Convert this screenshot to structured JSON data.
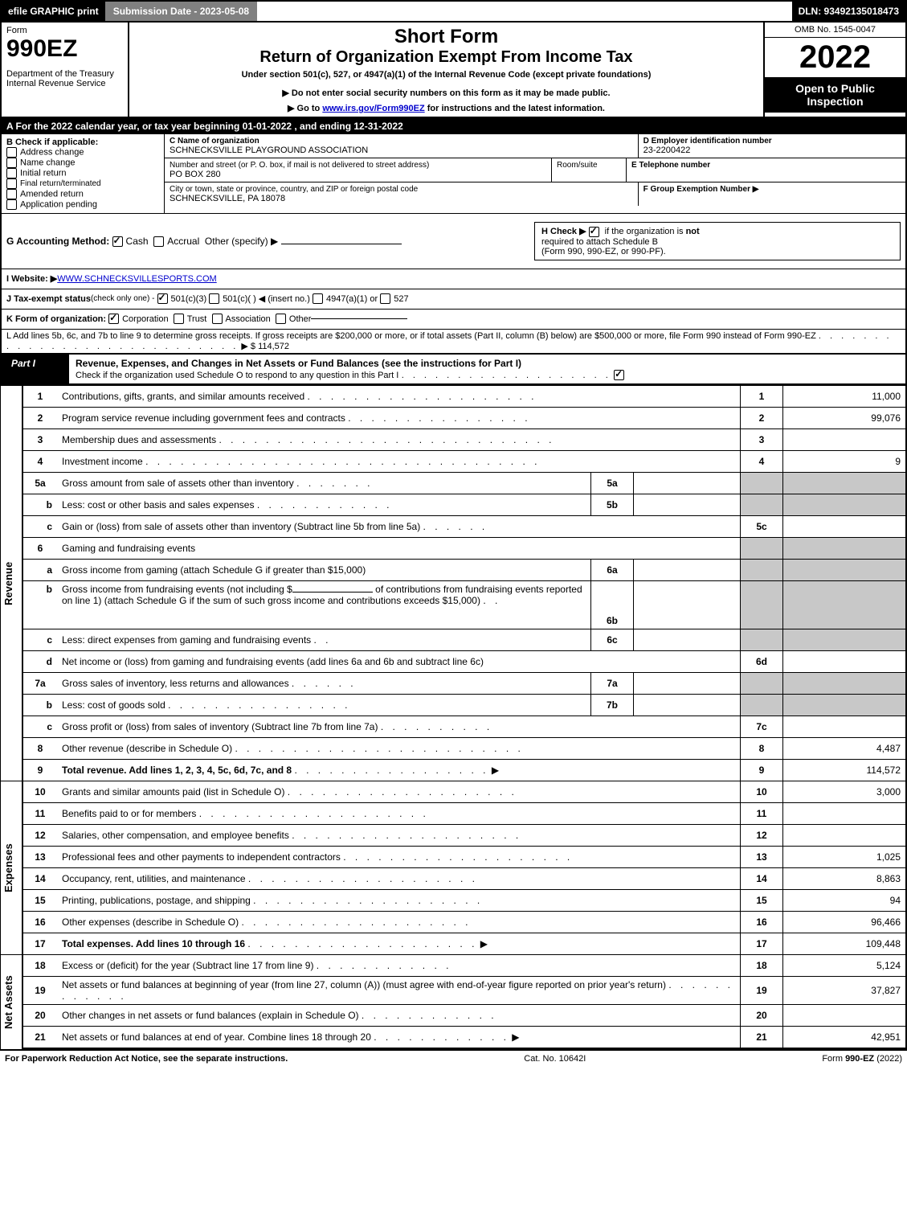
{
  "top_bar": {
    "efile": "efile GRAPHIC print",
    "submission": "Submission Date - 2023-05-08",
    "dln": "DLN: 93492135018473"
  },
  "header": {
    "form_word": "Form",
    "form_no": "990EZ",
    "dept": "Department of the Treasury",
    "irs": "Internal Revenue Service",
    "short_form": "Short Form",
    "title": "Return of Organization Exempt From Income Tax",
    "subtitle": "Under section 501(c), 527, or 4947(a)(1) of the Internal Revenue Code (except private foundations)",
    "note1": "▶ Do not enter social security numbers on this form as it may be made public.",
    "note2": "▶ Go to www.irs.gov/Form990EZ for instructions and the latest information.",
    "note2_link": "www.irs.gov/Form990EZ",
    "omb": "OMB No. 1545-0047",
    "year": "2022",
    "open": "Open to Public Inspection"
  },
  "section_A": "A  For the 2022 calendar year, or tax year beginning 01-01-2022 , and ending 12-31-2022",
  "B": {
    "title": "B  Check if applicable:",
    "items": [
      "Address change",
      "Name change",
      "Initial return",
      "Final return/terminated",
      "Amended return",
      "Application pending"
    ]
  },
  "C": {
    "label": "C Name of organization",
    "name": "SCHNECKSVILLE PLAYGROUND ASSOCIATION",
    "street_label": "Number and street (or P. O. box, if mail is not delivered to street address)",
    "street": "PO BOX 280",
    "room_label": "Room/suite",
    "city_label": "City or town, state or province, country, and ZIP or foreign postal code",
    "city": "SCHNECKSVILLE, PA  18078"
  },
  "D": {
    "label": "D Employer identification number",
    "value": "23-2200422"
  },
  "E": {
    "label": "E Telephone number",
    "value": ""
  },
  "F": {
    "label": "F Group Exemption Number  ▶",
    "value": ""
  },
  "G": {
    "label": "G Accounting Method:",
    "cash": "Cash",
    "accrual": "Accrual",
    "other": "Other (specify) ▶"
  },
  "H": {
    "text1": "H  Check ▶",
    "text2": "if the organization is",
    "not": "not",
    "text3": "required to attach Schedule B",
    "text4": "(Form 990, 990-EZ, or 990-PF)."
  },
  "I": {
    "label": "I Website: ▶",
    "value": "WWW.SCHNECKSVILLESPORTS.COM"
  },
  "J": {
    "label": "J Tax-exempt status",
    "note": "(check only one) -",
    "opt1": "501(c)(3)",
    "opt2": "501(c)(  ) ◀ (insert no.)",
    "opt3": "4947(a)(1) or",
    "opt4": "527"
  },
  "K": {
    "label": "K Form of organization:",
    "opts": [
      "Corporation",
      "Trust",
      "Association",
      "Other"
    ]
  },
  "L": {
    "text": "L Add lines 5b, 6c, and 7b to line 9 to determine gross receipts. If gross receipts are $200,000 or more, or if total assets (Part II, column (B) below) are $500,000 or more, file Form 990 instead of Form 990-EZ",
    "arrow": "▶",
    "amount": "$ 114,572"
  },
  "part1": {
    "label": "Part I",
    "title": "Revenue, Expenses, and Changes in Net Assets or Fund Balances (see the instructions for Part I)",
    "sub": "Check if the organization used Schedule O to respond to any question in this Part I"
  },
  "vtabs": {
    "rev": "Revenue",
    "exp": "Expenses",
    "net": "Net Assets"
  },
  "revenue": [
    {
      "ln": "1",
      "desc": "Contributions, gifts, grants, and similar amounts received",
      "num": "1",
      "val": "11,000"
    },
    {
      "ln": "2",
      "desc": "Program service revenue including government fees and contracts",
      "num": "2",
      "val": "99,076"
    },
    {
      "ln": "3",
      "desc": "Membership dues and assessments",
      "num": "3",
      "val": ""
    },
    {
      "ln": "4",
      "desc": "Investment income",
      "num": "4",
      "val": "9"
    }
  ],
  "rev5a": {
    "ln": "5a",
    "desc": "Gross amount from sale of assets other than inventory",
    "innum": "5a"
  },
  "rev5b": {
    "ln": "b",
    "desc": "Less: cost or other basis and sales expenses",
    "innum": "5b"
  },
  "rev5c": {
    "ln": "c",
    "desc": "Gain or (loss) from sale of assets other than inventory (Subtract line 5b from line 5a)",
    "num": "5c",
    "val": ""
  },
  "rev6": {
    "ln": "6",
    "desc": "Gaming and fundraising events"
  },
  "rev6a": {
    "ln": "a",
    "desc": "Gross income from gaming (attach Schedule G if greater than $15,000)",
    "innum": "6a"
  },
  "rev6b": {
    "ln": "b",
    "desc1": "Gross income from fundraising events (not including $",
    "desc2": "of contributions from fundraising events reported on line 1) (attach Schedule G if the sum of such gross income and contributions exceeds $15,000)",
    "innum": "6b"
  },
  "rev6c": {
    "ln": "c",
    "desc": "Less: direct expenses from gaming and fundraising events",
    "innum": "6c"
  },
  "rev6d": {
    "ln": "d",
    "desc": "Net income or (loss) from gaming and fundraising events (add lines 6a and 6b and subtract line 6c)",
    "num": "6d",
    "val": ""
  },
  "rev7a": {
    "ln": "7a",
    "desc": "Gross sales of inventory, less returns and allowances",
    "innum": "7a"
  },
  "rev7b": {
    "ln": "b",
    "desc": "Less: cost of goods sold",
    "innum": "7b"
  },
  "rev7c": {
    "ln": "c",
    "desc": "Gross profit or (loss) from sales of inventory (Subtract line 7b from line 7a)",
    "num": "7c",
    "val": ""
  },
  "rev8": {
    "ln": "8",
    "desc": "Other revenue (describe in Schedule O)",
    "num": "8",
    "val": "4,487"
  },
  "rev9": {
    "ln": "9",
    "desc": "Total revenue. Add lines 1, 2, 3, 4, 5c, 6d, 7c, and 8",
    "arrow": "▶",
    "num": "9",
    "val": "114,572",
    "bold": true
  },
  "expenses": [
    {
      "ln": "10",
      "desc": "Grants and similar amounts paid (list in Schedule O)",
      "num": "10",
      "val": "3,000"
    },
    {
      "ln": "11",
      "desc": "Benefits paid to or for members",
      "num": "11",
      "val": ""
    },
    {
      "ln": "12",
      "desc": "Salaries, other compensation, and employee benefits",
      "num": "12",
      "val": ""
    },
    {
      "ln": "13",
      "desc": "Professional fees and other payments to independent contractors",
      "num": "13",
      "val": "1,025"
    },
    {
      "ln": "14",
      "desc": "Occupancy, rent, utilities, and maintenance",
      "num": "14",
      "val": "8,863"
    },
    {
      "ln": "15",
      "desc": "Printing, publications, postage, and shipping",
      "num": "15",
      "val": "94"
    },
    {
      "ln": "16",
      "desc": "Other expenses (describe in Schedule O)",
      "num": "16",
      "val": "96,466"
    },
    {
      "ln": "17",
      "desc": "Total expenses. Add lines 10 through 16",
      "arrow": "▶",
      "num": "17",
      "val": "109,448",
      "bold": true
    }
  ],
  "netassets": [
    {
      "ln": "18",
      "desc": "Excess or (deficit) for the year (Subtract line 17 from line 9)",
      "num": "18",
      "val": "5,124"
    },
    {
      "ln": "19",
      "desc": "Net assets or fund balances at beginning of year (from line 27, column (A)) (must agree with end-of-year figure reported on prior year's return)",
      "num": "19",
      "val": "37,827"
    },
    {
      "ln": "20",
      "desc": "Other changes in net assets or fund balances (explain in Schedule O)",
      "num": "20",
      "val": ""
    },
    {
      "ln": "21",
      "desc": "Net assets or fund balances at end of year. Combine lines 18 through 20",
      "arrow": "▶",
      "num": "21",
      "val": "42,951"
    }
  ],
  "footer": {
    "left": "For Paperwork Reduction Act Notice, see the separate instructions.",
    "center": "Cat. No. 10642I",
    "right": "Form 990-EZ (2022)"
  },
  "colors": {
    "black": "#000000",
    "white": "#ffffff",
    "gray_header": "#808080",
    "shade": "#c8c8c8",
    "link": "#0000cc"
  }
}
